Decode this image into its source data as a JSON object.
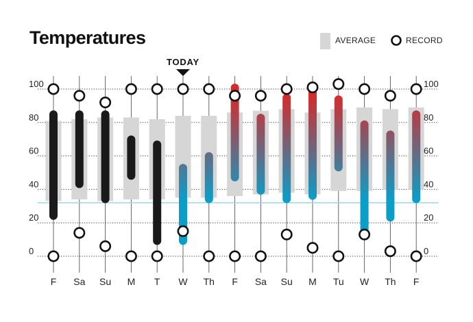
{
  "chart_data": {
    "type": "range-bar",
    "title": "Temperatures",
    "legend": [
      {
        "label": "AVERAGE",
        "kind": "average"
      },
      {
        "label": "RECORD",
        "kind": "record"
      }
    ],
    "legend_position": "top-right",
    "today_label": "TODAY",
    "today_index": 5,
    "y_ticks": [
      0,
      20,
      40,
      60,
      80,
      100
    ],
    "ylim": [
      -5,
      105
    ],
    "reference_line": 32,
    "days": [
      {
        "label": "F",
        "avg": [
          33,
          81
        ],
        "obs": [
          23,
          86
        ],
        "forecast": false,
        "rec": [
          0,
          100
        ]
      },
      {
        "label": "Sa",
        "avg": [
          34,
          82
        ],
        "obs": [
          42,
          86
        ],
        "forecast": false,
        "rec": [
          14,
          96
        ]
      },
      {
        "label": "Su",
        "avg": [
          33,
          83
        ],
        "obs": [
          33,
          86
        ],
        "forecast": false,
        "rec": [
          6,
          92
        ]
      },
      {
        "label": "M",
        "avg": [
          34,
          83
        ],
        "obs": [
          47,
          71
        ],
        "forecast": false,
        "rec": [
          0,
          100
        ]
      },
      {
        "label": "T",
        "avg": [
          34,
          82
        ],
        "obs": [
          8,
          68
        ],
        "forecast": false,
        "rec": [
          0,
          100
        ]
      },
      {
        "label": "W",
        "avg": [
          35,
          84
        ],
        "obs": [
          8,
          54
        ],
        "forecast": true,
        "rec": [
          15,
          100
        ]
      },
      {
        "label": "Th",
        "avg": [
          35,
          84
        ],
        "obs": [
          33,
          61
        ],
        "forecast": true,
        "rec": [
          0,
          100
        ]
      },
      {
        "label": "F",
        "avg": [
          36,
          86
        ],
        "obs": [
          46,
          102
        ],
        "forecast": true,
        "rec": [
          0,
          96
        ]
      },
      {
        "label": "Sa",
        "avg": [
          37,
          87
        ],
        "obs": [
          38,
          84
        ],
        "forecast": true,
        "rec": [
          0,
          96
        ]
      },
      {
        "label": "Su",
        "avg": [
          38,
          88
        ],
        "obs": [
          33,
          96
        ],
        "forecast": true,
        "rec": [
          13,
          100
        ]
      },
      {
        "label": "M",
        "avg": [
          37,
          86
        ],
        "obs": [
          35,
          101
        ],
        "forecast": true,
        "rec": [
          5,
          101
        ]
      },
      {
        "label": "Tu",
        "avg": [
          39,
          88
        ],
        "obs": [
          52,
          95
        ],
        "forecast": true,
        "rec": [
          0,
          103
        ]
      },
      {
        "label": "W",
        "avg": [
          39,
          89
        ],
        "obs": [
          13,
          80
        ],
        "forecast": true,
        "rec": [
          13,
          100
        ]
      },
      {
        "label": "Th",
        "avg": [
          40,
          88
        ],
        "obs": [
          22,
          74
        ],
        "forecast": true,
        "rec": [
          3,
          96
        ]
      },
      {
        "label": "F",
        "avg": [
          40,
          89
        ],
        "obs": [
          33,
          86
        ],
        "forecast": true,
        "rec": [
          0,
          100
        ]
      }
    ],
    "colors": {
      "average": "#d6d6d6",
      "observed": "#1a1a1a",
      "forecast_high": "#d42c2c",
      "forecast_low": "#0a9ec9",
      "reference": "#a6d7e8",
      "record_stroke": "#111111"
    }
  }
}
